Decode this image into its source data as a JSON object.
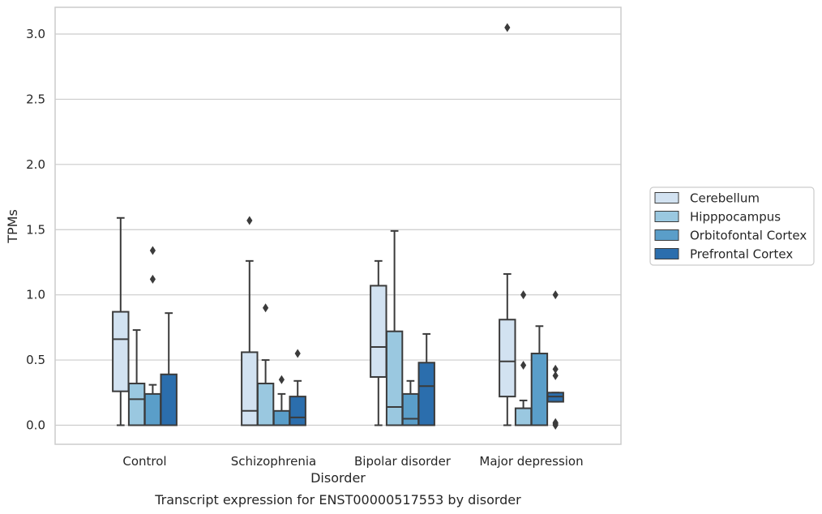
{
  "chart_data": {
    "type": "box",
    "title": "",
    "caption": "Transcript expression for ENST00000517553 by disorder",
    "xlabel": "Disorder",
    "ylabel": "TPMs",
    "ylim": [
      -0.15,
      3.2
    ],
    "yticks": [
      "0.0",
      "0.5",
      "1.0",
      "1.5",
      "2.0",
      "2.5",
      "3.0"
    ],
    "grid": true,
    "legend_position": "right",
    "categories": [
      "Control",
      "Schizophrenia",
      "Bipolar disorder",
      "Major depression"
    ],
    "series": [
      {
        "name": "Cerebellum",
        "color": "#d2e2f1",
        "boxes": [
          {
            "whislo": 0.0,
            "q1": 0.26,
            "med": 0.66,
            "q3": 0.87,
            "whishi": 1.59,
            "fliers": []
          },
          {
            "whislo": 0.0,
            "q1": 0.0,
            "med": 0.11,
            "q3": 0.56,
            "whishi": 1.26,
            "fliers": [
              1.57
            ]
          },
          {
            "whislo": 0.0,
            "q1": 0.37,
            "med": 0.6,
            "q3": 1.07,
            "whishi": 1.26,
            "fliers": []
          },
          {
            "whislo": 0.0,
            "q1": 0.22,
            "med": 0.49,
            "q3": 0.81,
            "whishi": 1.16,
            "fliers": [
              3.05
            ]
          }
        ]
      },
      {
        "name": "Hipppocampus",
        "color": "#9ac8e0",
        "boxes": [
          {
            "whislo": 0.0,
            "q1": 0.0,
            "med": 0.2,
            "q3": 0.32,
            "whishi": 0.73,
            "fliers": []
          },
          {
            "whislo": 0.0,
            "q1": 0.0,
            "med": 0.0,
            "q3": 0.32,
            "whishi": 0.5,
            "fliers": [
              0.9
            ]
          },
          {
            "whislo": 0.0,
            "q1": 0.0,
            "med": 0.14,
            "q3": 0.72,
            "whishi": 1.49,
            "fliers": []
          },
          {
            "whislo": 0.0,
            "q1": 0.0,
            "med": 0.0,
            "q3": 0.13,
            "whishi": 0.19,
            "fliers": [
              0.46,
              1.0
            ]
          }
        ]
      },
      {
        "name": "Orbitofontal Cortex",
        "color": "#5a9ec9",
        "boxes": [
          {
            "whislo": 0.0,
            "q1": 0.0,
            "med": 0.0,
            "q3": 0.24,
            "whishi": 0.31,
            "fliers": [
              1.12,
              1.34
            ]
          },
          {
            "whislo": 0.0,
            "q1": 0.0,
            "med": 0.0,
            "q3": 0.11,
            "whishi": 0.24,
            "fliers": [
              0.35
            ]
          },
          {
            "whislo": 0.0,
            "q1": 0.0,
            "med": 0.05,
            "q3": 0.24,
            "whishi": 0.34,
            "fliers": []
          },
          {
            "whislo": 0.0,
            "q1": 0.0,
            "med": 0.0,
            "q3": 0.55,
            "whishi": 0.76,
            "fliers": []
          }
        ]
      },
      {
        "name": "Prefrontal Cortex",
        "color": "#2b6ead",
        "boxes": [
          {
            "whislo": 0.0,
            "q1": 0.0,
            "med": 0.0,
            "q3": 0.39,
            "whishi": 0.86,
            "fliers": []
          },
          {
            "whislo": 0.0,
            "q1": 0.0,
            "med": 0.06,
            "q3": 0.22,
            "whishi": 0.34,
            "fliers": [
              0.55
            ]
          },
          {
            "whislo": 0.0,
            "q1": 0.0,
            "med": 0.3,
            "q3": 0.48,
            "whishi": 0.7,
            "fliers": []
          },
          {
            "whislo": 0.18,
            "q1": 0.18,
            "med": 0.22,
            "q3": 0.25,
            "whishi": 0.25,
            "fliers": [
              0.0,
              0.01,
              0.02,
              0.38,
              0.43,
              1.0
            ]
          }
        ]
      }
    ]
  }
}
